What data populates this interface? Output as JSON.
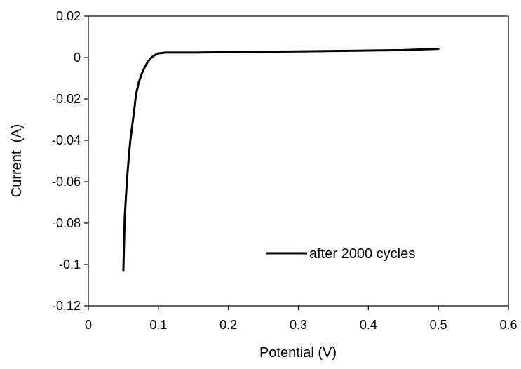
{
  "chart_data": {
    "type": "line",
    "title": "",
    "xlabel": "Potential (V)",
    "ylabel": "Current  (A)",
    "xlim": [
      0,
      0.6
    ],
    "ylim": [
      -0.12,
      0.02
    ],
    "x_ticks": [
      0,
      0.1,
      0.2,
      0.3,
      0.4,
      0.5,
      0.6
    ],
    "x_tick_labels": [
      "0",
      "0.1",
      "0.2",
      "0.3",
      "0.4",
      "0.5",
      "0.6"
    ],
    "y_ticks": [
      0.02,
      0,
      -0.02,
      -0.04,
      -0.06,
      -0.08,
      -0.1,
      -0.12
    ],
    "y_tick_labels": [
      "0.02",
      "0",
      "-0.02",
      "-0.04",
      "-0.06",
      "-0.08",
      "-0.1",
      "-0.12"
    ],
    "grid": false,
    "legend_position": "bottom-right",
    "series": [
      {
        "name": "after 2000 cycles",
        "color": "#000000",
        "x": [
          0.05,
          0.052,
          0.055,
          0.058,
          0.06,
          0.063,
          0.066,
          0.068,
          0.072,
          0.076,
          0.08,
          0.085,
          0.09,
          0.095,
          0.1,
          0.105,
          0.11,
          0.12,
          0.15,
          0.2,
          0.25,
          0.3,
          0.35,
          0.4,
          0.45,
          0.48,
          0.5
        ],
        "y": [
          -0.103,
          -0.077,
          -0.06,
          -0.047,
          -0.04,
          -0.032,
          -0.024,
          -0.018,
          -0.012,
          -0.008,
          -0.005,
          -0.002,
          0.0,
          0.0012,
          0.002,
          0.0022,
          0.0024,
          0.0024,
          0.0024,
          0.0026,
          0.0028,
          0.003,
          0.0032,
          0.0034,
          0.0036,
          0.004,
          0.0042
        ]
      }
    ]
  }
}
